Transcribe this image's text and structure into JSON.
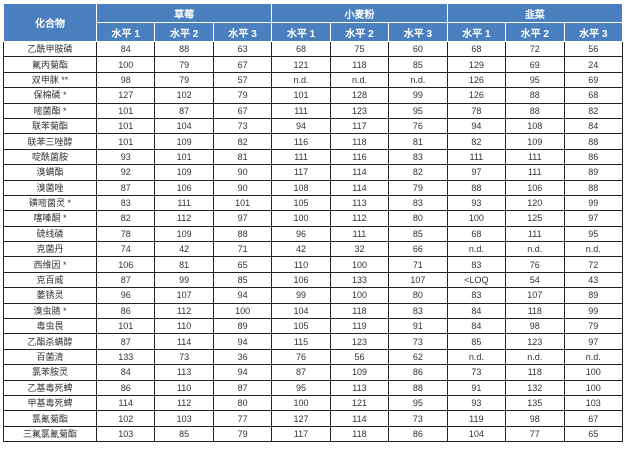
{
  "header": {
    "compound": "化合物",
    "groups": [
      "草莓",
      "小麦粉",
      "韭菜"
    ],
    "levels": [
      "水平 1",
      "水平 2",
      "水平 3"
    ]
  },
  "rows": [
    {
      "name": "乙酰甲胺磷",
      "v": [
        "84",
        "88",
        "63",
        "68",
        "75",
        "60",
        "68",
        "72",
        "56"
      ]
    },
    {
      "name": "氟丙菊酯",
      "v": [
        "100",
        "79",
        "67",
        "121",
        "118",
        "85",
        "129",
        "69",
        "24"
      ]
    },
    {
      "name": "双甲脒 **",
      "v": [
        "98",
        "79",
        "57",
        "n.d.",
        "n.d.",
        "n.d.",
        "126",
        "95",
        "69"
      ]
    },
    {
      "name": "保棉磷 *",
      "v": [
        "127",
        "102",
        "79",
        "101",
        "128",
        "99",
        "126",
        "88",
        "68"
      ]
    },
    {
      "name": "嘧菌酯 *",
      "v": [
        "101",
        "87",
        "67",
        "111",
        "123",
        "95",
        "78",
        "88",
        "82"
      ]
    },
    {
      "name": "联苯菊酯",
      "v": [
        "101",
        "104",
        "73",
        "94",
        "117",
        "76",
        "94",
        "108",
        "84"
      ]
    },
    {
      "name": "联苯三唑醇",
      "v": [
        "101",
        "109",
        "82",
        "116",
        "118",
        "81",
        "82",
        "109",
        "88"
      ]
    },
    {
      "name": "啶酰菌胺",
      "v": [
        "93",
        "101",
        "81",
        "111",
        "116",
        "83",
        "111",
        "111",
        "86"
      ]
    },
    {
      "name": "溴螨酯",
      "v": [
        "92",
        "109",
        "90",
        "117",
        "114",
        "82",
        "97",
        "111",
        "89"
      ]
    },
    {
      "name": "溴菌唑",
      "v": [
        "87",
        "106",
        "90",
        "108",
        "114",
        "79",
        "88",
        "106",
        "88"
      ]
    },
    {
      "name": "磺嘧菌灵 *",
      "v": [
        "83",
        "111",
        "101",
        "105",
        "113",
        "83",
        "93",
        "120",
        "99"
      ]
    },
    {
      "name": "噻嗪酮 *",
      "v": [
        "82",
        "112",
        "97",
        "100",
        "112",
        "80",
        "100",
        "125",
        "97"
      ]
    },
    {
      "name": "硫线磷",
      "v": [
        "78",
        "109",
        "88",
        "96",
        "111",
        "85",
        "68",
        "111",
        "95"
      ]
    },
    {
      "name": "克菌丹",
      "v": [
        "74",
        "42",
        "71",
        "42",
        "32",
        "66",
        "n.d.",
        "n.d.",
        "n.d."
      ]
    },
    {
      "name": "西维因 *",
      "v": [
        "106",
        "81",
        "65",
        "110",
        "100",
        "71",
        "83",
        "76",
        "72"
      ]
    },
    {
      "name": "克百威",
      "v": [
        "87",
        "99",
        "85",
        "106",
        "133",
        "107",
        "<LOQ",
        "54",
        "43"
      ]
    },
    {
      "name": "萎锈灵",
      "v": [
        "96",
        "107",
        "94",
        "99",
        "100",
        "80",
        "83",
        "107",
        "89"
      ]
    },
    {
      "name": "溴虫腈 *",
      "v": [
        "86",
        "112",
        "100",
        "104",
        "118",
        "83",
        "84",
        "118",
        "99"
      ]
    },
    {
      "name": "毒虫畏",
      "v": [
        "101",
        "110",
        "89",
        "105",
        "119",
        "91",
        "84",
        "98",
        "79"
      ]
    },
    {
      "name": "乙酯杀螨醇",
      "v": [
        "87",
        "114",
        "94",
        "115",
        "123",
        "73",
        "85",
        "123",
        "97"
      ]
    },
    {
      "name": "百菌清",
      "v": [
        "133",
        "73",
        "36",
        "76",
        "56",
        "62",
        "n.d.",
        "n.d.",
        "n.d."
      ]
    },
    {
      "name": "氯苯胺灵",
      "v": [
        "84",
        "113",
        "94",
        "87",
        "109",
        "86",
        "73",
        "118",
        "100"
      ]
    },
    {
      "name": "乙基毒死蜱",
      "v": [
        "86",
        "110",
        "87",
        "95",
        "113",
        "88",
        "91",
        "132",
        "100"
      ]
    },
    {
      "name": "甲基毒死蜱",
      "v": [
        "114",
        "112",
        "80",
        "100",
        "121",
        "95",
        "93",
        "135",
        "103"
      ]
    },
    {
      "name": "氯氰菊酯",
      "v": [
        "102",
        "103",
        "77",
        "127",
        "114",
        "73",
        "119",
        "98",
        "67"
      ]
    },
    {
      "name": "三氟氯氰菊酯",
      "v": [
        "103",
        "85",
        "79",
        "117",
        "118",
        "86",
        "104",
        "77",
        "65"
      ]
    }
  ]
}
